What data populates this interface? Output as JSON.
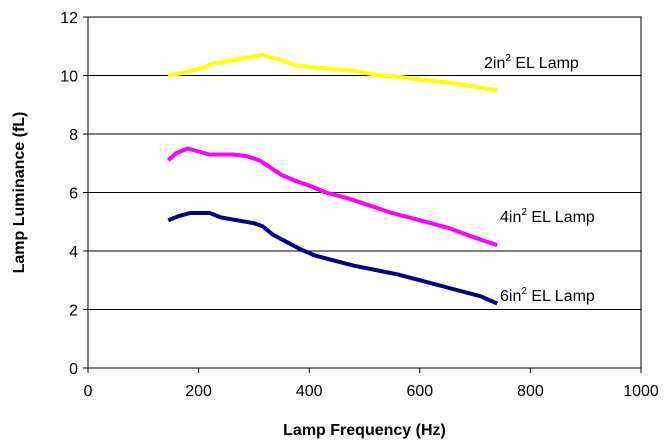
{
  "chart_data": {
    "type": "line",
    "xlabel": "Lamp Frequency (Hz)",
    "ylabel": "Lamp Luminance (fL)",
    "xlim": [
      0,
      1000
    ],
    "ylim": [
      0,
      12
    ],
    "x_ticks": [
      "0",
      "200",
      "400",
      "600",
      "800",
      "1000"
    ],
    "y_ticks": [
      "0",
      "2",
      "4",
      "6",
      "8",
      "10",
      "12"
    ],
    "grid": "horizontal",
    "legend": "none",
    "series": [
      {
        "label_parts": [
          "2in",
          "2",
          " EL Lamp"
        ],
        "color": "#FFFF00",
        "points": [
          [
            145,
            10.0
          ],
          [
            175,
            10.1
          ],
          [
            205,
            10.25
          ],
          [
            225,
            10.4
          ],
          [
            255,
            10.5
          ],
          [
            285,
            10.6
          ],
          [
            315,
            10.7
          ],
          [
            345,
            10.55
          ],
          [
            375,
            10.35
          ],
          [
            405,
            10.28
          ],
          [
            445,
            10.22
          ],
          [
            485,
            10.15
          ],
          [
            525,
            10.0
          ],
          [
            565,
            9.95
          ],
          [
            605,
            9.85
          ],
          [
            655,
            9.75
          ],
          [
            705,
            9.6
          ],
          [
            740,
            9.5
          ]
        ]
      },
      {
        "label_parts": [
          "4in",
          "2",
          " EL Lamp"
        ],
        "color": "#FF00FF",
        "points": [
          [
            145,
            7.1
          ],
          [
            160,
            7.35
          ],
          [
            180,
            7.5
          ],
          [
            200,
            7.4
          ],
          [
            220,
            7.3
          ],
          [
            260,
            7.3
          ],
          [
            285,
            7.25
          ],
          [
            310,
            7.1
          ],
          [
            330,
            6.85
          ],
          [
            350,
            6.6
          ],
          [
            375,
            6.4
          ],
          [
            405,
            6.2
          ],
          [
            430,
            6.0
          ],
          [
            470,
            5.8
          ],
          [
            510,
            5.55
          ],
          [
            550,
            5.3
          ],
          [
            600,
            5.05
          ],
          [
            650,
            4.8
          ],
          [
            700,
            4.45
          ],
          [
            740,
            4.2
          ]
        ]
      },
      {
        "label_parts": [
          "6in",
          "2",
          " EL Lamp"
        ],
        "color": "#000080",
        "points": [
          [
            145,
            5.05
          ],
          [
            165,
            5.2
          ],
          [
            185,
            5.3
          ],
          [
            220,
            5.3
          ],
          [
            240,
            5.15
          ],
          [
            270,
            5.05
          ],
          [
            300,
            4.95
          ],
          [
            315,
            4.85
          ],
          [
            335,
            4.55
          ],
          [
            360,
            4.3
          ],
          [
            385,
            4.05
          ],
          [
            410,
            3.85
          ],
          [
            440,
            3.7
          ],
          [
            480,
            3.5
          ],
          [
            520,
            3.35
          ],
          [
            560,
            3.2
          ],
          [
            610,
            2.95
          ],
          [
            660,
            2.7
          ],
          [
            710,
            2.45
          ],
          [
            740,
            2.2
          ]
        ]
      }
    ]
  }
}
